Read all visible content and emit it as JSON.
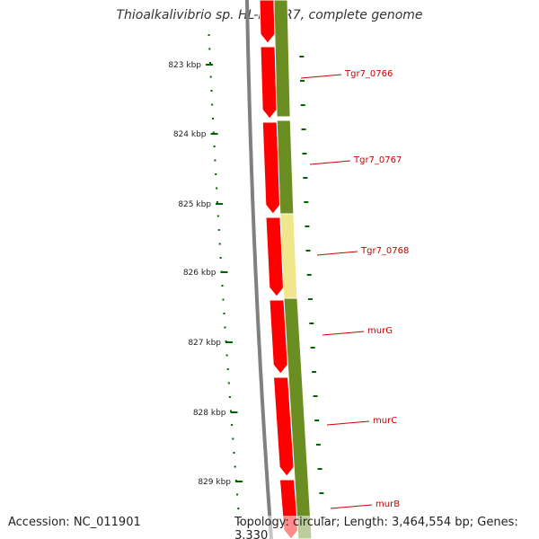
{
  "title": "Thioalkalivibrio sp. HL-EbGR7, complete genome",
  "footer": {
    "accession": "Accession: NC_011901",
    "topology": "Topology: circular; Length: 3,464,554 bp; Genes: 3,330"
  },
  "ruler": {
    "unit": "kbp",
    "labels": [
      "823 kbp",
      "824 kbp",
      "825 kbp",
      "826 kbp",
      "827 kbp",
      "828 kbp",
      "829 kbp"
    ]
  },
  "genes": [
    {
      "name": "Tgr7_0766"
    },
    {
      "name": "Tgr7_0767"
    },
    {
      "name": "Tgr7_0768"
    },
    {
      "name": "murG"
    },
    {
      "name": "murC"
    },
    {
      "name": "murB"
    }
  ],
  "colors": {
    "forward_cds": "#ff0000",
    "cog_track": "#6b8e23",
    "cog_highlight": "#f0e68c",
    "backbone": "#808080",
    "ruler_ticks": "#006400",
    "gene_labels": "#cc0000"
  }
}
